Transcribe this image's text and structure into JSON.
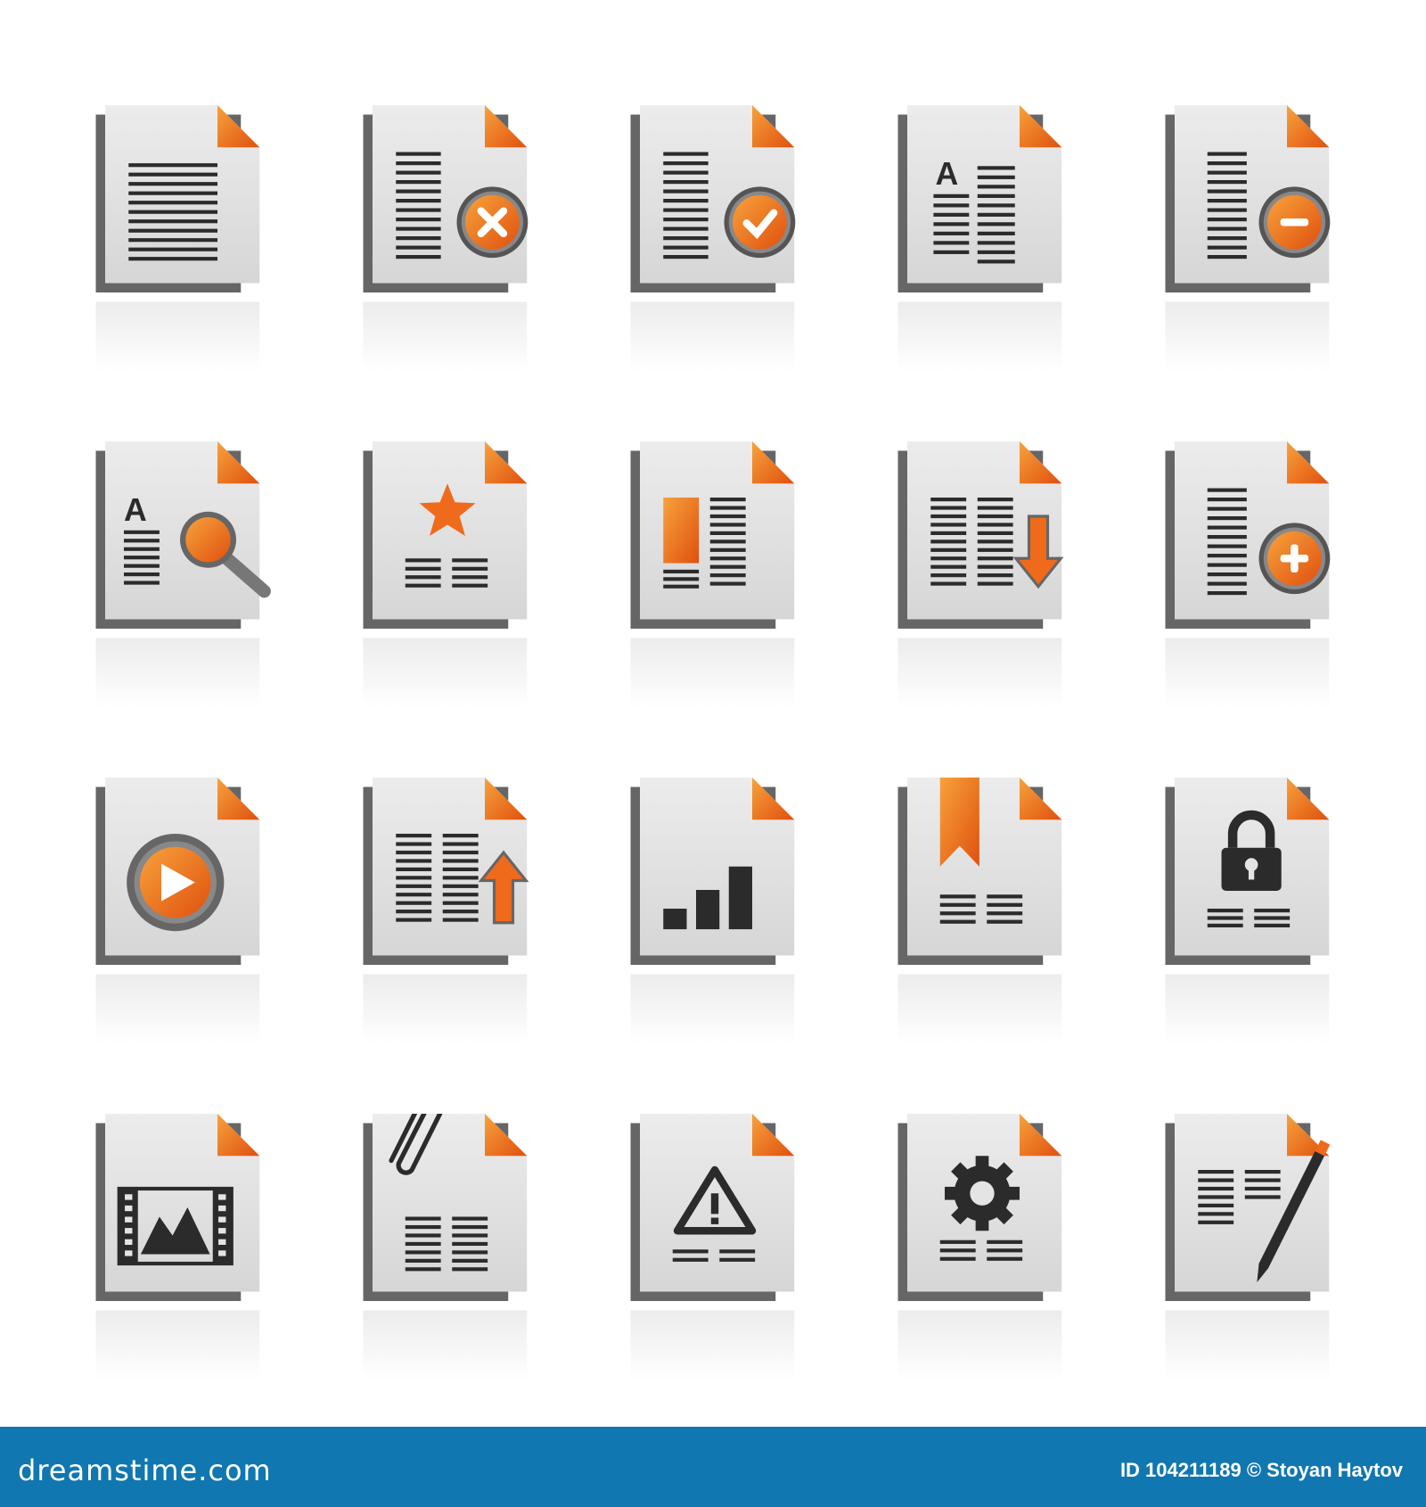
{
  "colors": {
    "accent": "#f06a1c",
    "page": "#e4e4e4",
    "shadow": "#555555",
    "ink": "#2b2b2b",
    "footer": "#1077b0"
  },
  "icons": [
    {
      "name": "document-icon",
      "type": "document"
    },
    {
      "name": "document-delete-icon",
      "type": "delete"
    },
    {
      "name": "document-approve-icon",
      "type": "approve"
    },
    {
      "name": "document-text-icon",
      "type": "text",
      "letter": "A"
    },
    {
      "name": "document-remove-icon",
      "type": "remove"
    },
    {
      "name": "document-search-icon",
      "type": "search",
      "letter": "A"
    },
    {
      "name": "document-favorite-icon",
      "type": "star"
    },
    {
      "name": "document-highlight-icon",
      "type": "highlight"
    },
    {
      "name": "document-download-icon",
      "type": "download"
    },
    {
      "name": "document-add-icon",
      "type": "add"
    },
    {
      "name": "document-play-icon",
      "type": "play"
    },
    {
      "name": "document-upload-icon",
      "type": "upload"
    },
    {
      "name": "document-statistics-icon",
      "type": "stats"
    },
    {
      "name": "document-bookmark-icon",
      "type": "bookmark"
    },
    {
      "name": "document-lock-icon",
      "type": "lock"
    },
    {
      "name": "document-video-icon",
      "type": "film"
    },
    {
      "name": "document-attachment-icon",
      "type": "clip"
    },
    {
      "name": "document-warning-icon",
      "type": "warning"
    },
    {
      "name": "document-settings-icon",
      "type": "gear"
    },
    {
      "name": "document-edit-icon",
      "type": "edit"
    }
  ],
  "footer": {
    "brand": "dreamstime.com",
    "credit": "ID 104211189 © Stoyan Haytov"
  }
}
